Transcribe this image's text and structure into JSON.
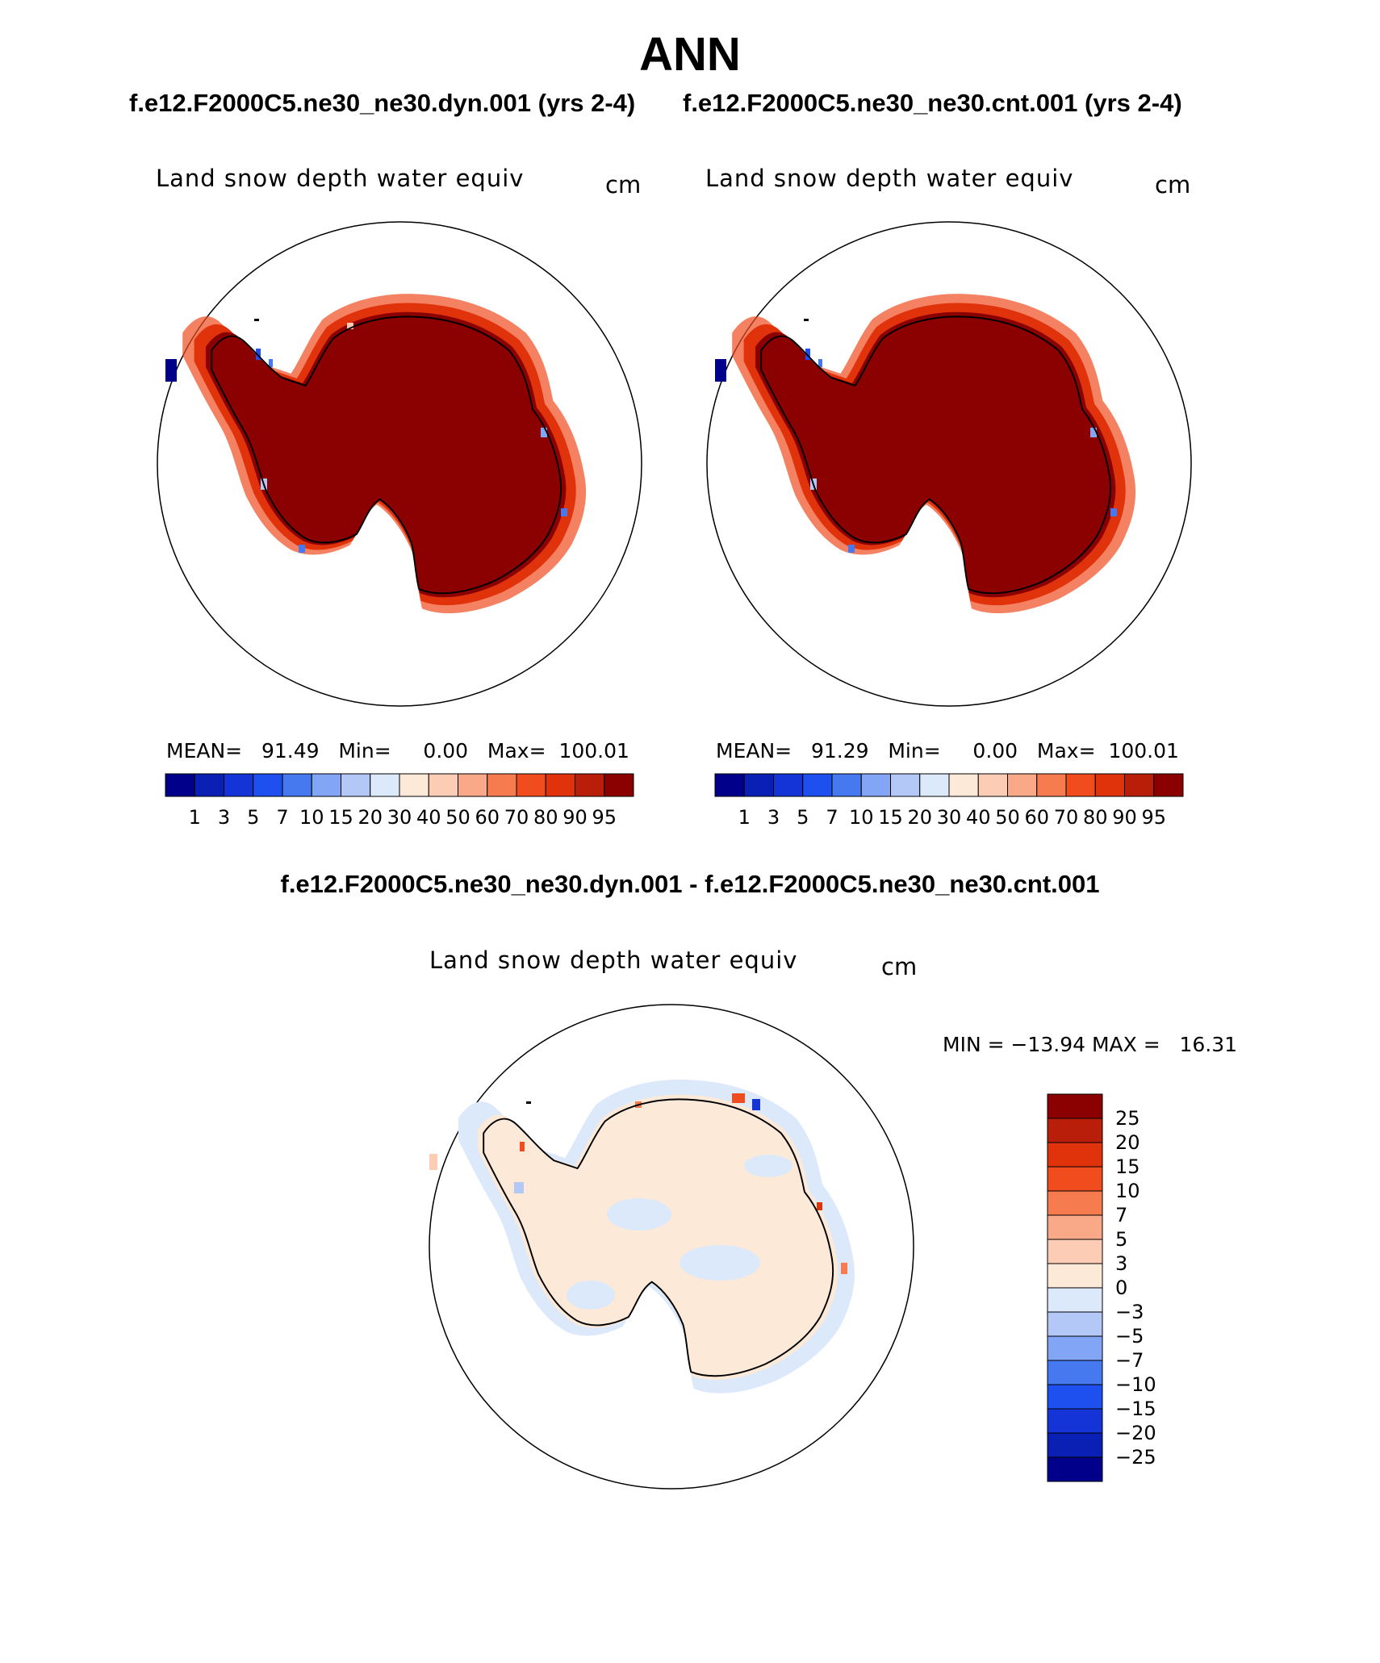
{
  "header": {
    "season": "ANN",
    "case_test": "f.e12.F2000C5.ne30_ne30.dyn.001 (yrs 2-4)",
    "case_control": "f.e12.F2000C5.ne30_ne30.cnt.001 (yrs 2-4)",
    "diff_title": "f.e12.F2000C5.ne30_ne30.dyn.001 - f.e12.F2000C5.ne30_ne30.cnt.001"
  },
  "panels": [
    {
      "title": "Land snow depth water equiv",
      "units": "cm",
      "stats": "MEAN=   91.49   Min=     0.00   Max=  100.01"
    },
    {
      "title": "Land snow depth water equiv",
      "units": "cm",
      "stats": "MEAN=   91.29   Min=     0.00   Max=  100.01"
    },
    {
      "title": "Land snow depth water equiv",
      "units": "cm",
      "stats": "MIN = −13.94 MAX =   16.31"
    }
  ],
  "colorbar_main": {
    "labels": [
      "1",
      "3",
      "5",
      "7",
      "10",
      "15",
      "20",
      "30",
      "40",
      "50",
      "60",
      "70",
      "80",
      "90",
      "95"
    ],
    "colors": [
      "#00008b",
      "#0a1fb4",
      "#1434d8",
      "#1e50f0",
      "#4678f0",
      "#82a5f5",
      "#b4c8f8",
      "#dce9fb",
      "#fde9d8",
      "#fcccb5",
      "#f9a987",
      "#f67b4f",
      "#f04c1e",
      "#e0320b",
      "#b81e0a",
      "#8b0000"
    ]
  },
  "colorbar_diff": {
    "labels": [
      "25",
      "20",
      "15",
      "10",
      "7",
      "5",
      "3",
      "0",
      "−3",
      "−5",
      "−7",
      "−10",
      "−15",
      "−20",
      "−25"
    ],
    "colors": [
      "#8b0000",
      "#b81e0a",
      "#e0320b",
      "#f04c1e",
      "#f67b4f",
      "#f9a987",
      "#fcccb5",
      "#fde9d8",
      "#dce9fb",
      "#b4c8f8",
      "#82a5f5",
      "#4678f0",
      "#1e50f0",
      "#1434d8",
      "#0a1fb4",
      "#00008b"
    ]
  }
}
